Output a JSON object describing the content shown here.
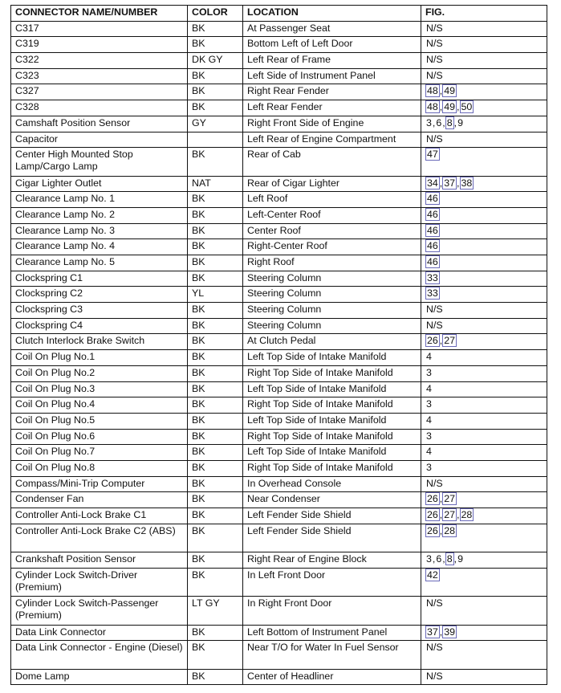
{
  "headers": [
    "CONNECTOR NAME/NUMBER",
    "COLOR",
    "LOCATION",
    "FIG."
  ],
  "link_color": "#6a6ab8",
  "rows": [
    {
      "name": "C317",
      "color": "BK",
      "location": "At Passenger Seat",
      "fig": [
        {
          "t": "N/S"
        }
      ]
    },
    {
      "name": "C319",
      "color": "BK",
      "location": "Bottom Left of Left Door",
      "fig": [
        {
          "t": "N/S"
        }
      ]
    },
    {
      "name": "C322",
      "color": "DK GY",
      "location": "Left Rear of Frame",
      "fig": [
        {
          "t": "N/S"
        }
      ]
    },
    {
      "name": "C323",
      "color": "BK",
      "location": "Left Side of Instrument Panel",
      "fig": [
        {
          "t": "N/S"
        }
      ]
    },
    {
      "name": "C327",
      "color": "BK",
      "location": "Right Rear Fender",
      "fig": [
        {
          "t": "48",
          "link": true
        },
        {
          "t": "49",
          "link": true
        }
      ]
    },
    {
      "name": "C328",
      "color": "BK",
      "location": "Left Rear Fender",
      "fig": [
        {
          "t": "48",
          "link": true
        },
        {
          "t": "49",
          "link": true
        },
        {
          "t": "50",
          "link": true
        }
      ]
    },
    {
      "name": "Camshaft Position Sensor",
      "color": "GY",
      "location": "Right Front Side of Engine",
      "fig": [
        {
          "t": "3"
        },
        {
          "t": "6"
        },
        {
          "t": "8",
          "link": true
        },
        {
          "t": "9"
        }
      ]
    },
    {
      "name": "Capacitor",
      "color": "",
      "location": "Left Rear of Engine Compartment",
      "fig": [
        {
          "t": "N/S"
        }
      ]
    },
    {
      "name": "Center High Mounted Stop Lamp/Cargo Lamp",
      "color": "BK",
      "location": "Rear of Cab",
      "fig": [
        {
          "t": "47",
          "link": true
        }
      ],
      "double": true
    },
    {
      "name": "Cigar Lighter Outlet",
      "color": "NAT",
      "location": "Rear of Cigar Lighter",
      "fig": [
        {
          "t": "34",
          "link": true
        },
        {
          "t": "37",
          "link": true
        },
        {
          "t": "38",
          "link": true
        }
      ]
    },
    {
      "name": "Clearance Lamp No. 1",
      "color": "BK",
      "location": "Left Roof",
      "fig": [
        {
          "t": "46",
          "link": true
        }
      ]
    },
    {
      "name": "Clearance Lamp No. 2",
      "color": "BK",
      "location": "Left-Center Roof",
      "fig": [
        {
          "t": "46",
          "link": true
        }
      ]
    },
    {
      "name": "Clearance Lamp No. 3",
      "color": "BK",
      "location": "Center Roof",
      "fig": [
        {
          "t": "46",
          "link": true
        }
      ]
    },
    {
      "name": "Clearance Lamp No. 4",
      "color": "BK",
      "location": "Right-Center Roof",
      "fig": [
        {
          "t": "46",
          "link": true
        }
      ]
    },
    {
      "name": "Clearance Lamp No. 5",
      "color": "BK",
      "location": "Right Roof",
      "fig": [
        {
          "t": "46",
          "link": true
        }
      ]
    },
    {
      "name": "Clockspring C1",
      "color": "BK",
      "location": "Steering Column",
      "fig": [
        {
          "t": "33",
          "link": true
        }
      ]
    },
    {
      "name": "Clockspring C2",
      "color": "YL",
      "location": "Steering Column",
      "fig": [
        {
          "t": "33",
          "link": true
        }
      ]
    },
    {
      "name": "Clockspring C3",
      "color": "BK",
      "location": "Steering Column",
      "fig": [
        {
          "t": "N/S"
        }
      ]
    },
    {
      "name": "Clockspring C4",
      "color": "BK",
      "location": "Steering Column",
      "fig": [
        {
          "t": "N/S"
        }
      ]
    },
    {
      "name": "Clutch Interlock Brake Switch",
      "color": "BK",
      "location": "At Clutch Pedal",
      "fig": [
        {
          "t": "26",
          "link": true
        },
        {
          "t": "27",
          "link": true
        }
      ]
    },
    {
      "name": "Coil On Plug No.1",
      "color": "BK",
      "location": "Left Top Side of Intake Manifold",
      "fig": [
        {
          "t": "4"
        }
      ]
    },
    {
      "name": "Coil On Plug No.2",
      "color": "BK",
      "location": "Right Top Side of Intake Manifold",
      "fig": [
        {
          "t": "3"
        }
      ]
    },
    {
      "name": "Coil On Plug No.3",
      "color": "BK",
      "location": "Left Top Side of Intake Manifold",
      "fig": [
        {
          "t": "4"
        }
      ]
    },
    {
      "name": "Coil On Plug No.4",
      "color": "BK",
      "location": "Right Top Side of Intake Manifold",
      "fig": [
        {
          "t": "3"
        }
      ]
    },
    {
      "name": "Coil On Plug No.5",
      "color": "BK",
      "location": "Left Top Side of Intake Manifold",
      "fig": [
        {
          "t": "4"
        }
      ]
    },
    {
      "name": "Coil On Plug No.6",
      "color": "BK",
      "location": "Right Top Side of Intake Manifold",
      "fig": [
        {
          "t": "3"
        }
      ]
    },
    {
      "name": "Coil On Plug No.7",
      "color": "BK",
      "location": "Left Top Side of Intake Manifold",
      "fig": [
        {
          "t": "4"
        }
      ]
    },
    {
      "name": "Coil On Plug No.8",
      "color": "BK",
      "location": "Right Top Side of Intake Manifold",
      "fig": [
        {
          "t": "3"
        }
      ]
    },
    {
      "name": "Compass/Mini-Trip Computer",
      "color": "BK",
      "location": "In Overhead Console",
      "fig": [
        {
          "t": "N/S"
        }
      ]
    },
    {
      "name": "Condenser Fan",
      "color": "BK",
      "location": "Near Condenser",
      "fig": [
        {
          "t": "26",
          "link": true
        },
        {
          "t": "27",
          "link": true
        }
      ]
    },
    {
      "name": "Controller Anti-Lock Brake C1",
      "color": "BK",
      "location": "Left Fender Side Shield",
      "fig": [
        {
          "t": "26",
          "link": true
        },
        {
          "t": "27",
          "link": true
        },
        {
          "t": "28",
          "link": true
        }
      ]
    },
    {
      "name": "Controller Anti-Lock Brake C2 (ABS)",
      "color": "BK",
      "location": "Left Fender Side Shield",
      "fig": [
        {
          "t": "26",
          "link": true
        },
        {
          "t": "28",
          "link": true
        }
      ],
      "double": true
    },
    {
      "name": "Crankshaft Position Sensor",
      "color": "BK",
      "location": "Right Rear of Engine Block",
      "fig": [
        {
          "t": "3"
        },
        {
          "t": "6"
        },
        {
          "t": "8",
          "link": true
        },
        {
          "t": "9"
        }
      ]
    },
    {
      "name": "Cylinder Lock Switch-Driver (Premium)",
      "color": "BK",
      "location": "In Left Front Door",
      "fig": [
        {
          "t": "42",
          "link": true
        }
      ],
      "double": true
    },
    {
      "name": "Cylinder Lock Switch-Passenger (Premium)",
      "color": "LT GY",
      "location": "In Right Front Door",
      "fig": [
        {
          "t": "N/S"
        }
      ],
      "double": true
    },
    {
      "name": "Data Link Connector",
      "color": "BK",
      "location": "Left Bottom of Instrument Panel",
      "fig": [
        {
          "t": "37",
          "link": true
        },
        {
          "t": "39",
          "link": true
        }
      ]
    },
    {
      "name": "Data Link Connector - Engine (Diesel)",
      "color": "BK",
      "location": "Near T/O for Water In Fuel Sensor",
      "fig": [
        {
          "t": "N/S"
        }
      ],
      "double": true
    },
    {
      "name": "Dome Lamp",
      "color": "BK",
      "location": "Center of Headliner",
      "fig": [
        {
          "t": "N/S"
        }
      ]
    }
  ]
}
